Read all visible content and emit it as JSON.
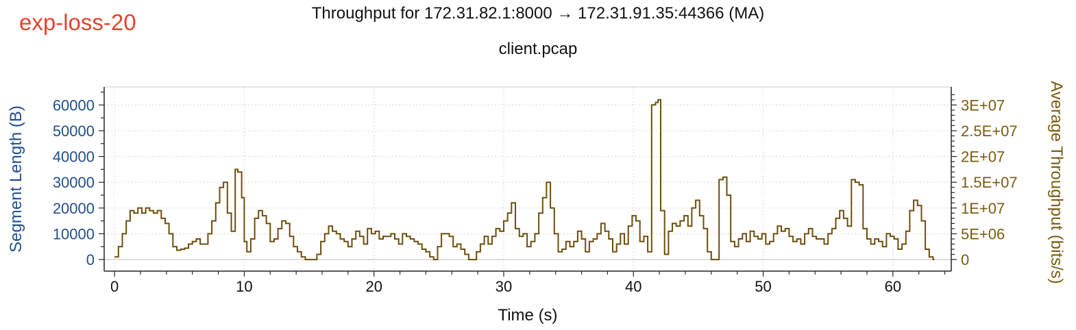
{
  "tag_label": "exp-loss-20",
  "chart_data": {
    "type": "line",
    "title": "Throughput for 172.31.82.1:8000 → 172.31.91.35:44366 (MA)",
    "subtitle": "client.pcap",
    "xlabel": "Time (s)",
    "ylabel_left": "Segment Length (B)",
    "ylabel_right": "Average Throughput (bits/s)",
    "xlim": [
      -0.8,
      64.5
    ],
    "ylim_left": [
      -4500,
      67000
    ],
    "ylim_right": [
      -2250000,
      33500000
    ],
    "x_ticks": [
      0,
      10,
      20,
      30,
      40,
      50,
      60
    ],
    "y_left_ticks": [
      0,
      10000,
      20000,
      30000,
      40000,
      50000,
      60000
    ],
    "y_right_ticks": [
      0,
      5000000,
      10000000,
      15000000,
      20000000,
      25000000,
      30000000
    ],
    "y_right_tick_labels": [
      "0",
      "5E+06",
      "1E+07",
      "1.5E+07",
      "2E+07",
      "2.5E+07",
      "3E+07"
    ],
    "grid": true,
    "colors": {
      "left_axis": "#1f4e8c",
      "right_axis": "#7a5a10",
      "series": "#6b4c0a"
    },
    "series": [
      {
        "axis": "right",
        "x": [
          0,
          0.3,
          0.6,
          0.9,
          1.2,
          1.5,
          1.8,
          2.1,
          2.4,
          2.7,
          3.0,
          3.3,
          3.6,
          3.9,
          4.2,
          4.5,
          4.8,
          5.1,
          5.4,
          5.7,
          6.0,
          6.3,
          6.6,
          6.9,
          7.2,
          7.5,
          7.8,
          8.1,
          8.4,
          8.7,
          9.0,
          9.3,
          9.5,
          9.8,
          10.0,
          10.2,
          10.5,
          10.8,
          11.1,
          11.4,
          11.7,
          12.0,
          12.3,
          12.6,
          12.9,
          13.2,
          13.5,
          13.8,
          14.1,
          14.4,
          14.7,
          15.0,
          15.3,
          15.6,
          15.9,
          16.2,
          16.5,
          16.8,
          17.1,
          17.4,
          17.7,
          18.0,
          18.3,
          18.6,
          18.9,
          19.2,
          19.5,
          19.8,
          20.1,
          20.4,
          20.7,
          21.0,
          21.3,
          21.6,
          21.9,
          22.2,
          22.5,
          22.8,
          23.1,
          23.4,
          23.7,
          24.0,
          24.3,
          24.6,
          24.9,
          25.2,
          25.5,
          25.8,
          26.1,
          26.4,
          26.7,
          27.0,
          27.3,
          27.6,
          27.9,
          28.2,
          28.5,
          28.8,
          29.1,
          29.4,
          29.7,
          30.0,
          30.3,
          30.6,
          30.9,
          31.2,
          31.5,
          31.8,
          32.1,
          32.4,
          32.7,
          33.0,
          33.3,
          33.6,
          33.9,
          34.2,
          34.5,
          34.8,
          35.1,
          35.4,
          35.7,
          36.0,
          36.3,
          36.6,
          36.9,
          37.2,
          37.5,
          37.8,
          38.1,
          38.4,
          38.7,
          39.0,
          39.3,
          39.6,
          39.9,
          40.2,
          40.5,
          40.8,
          41.1,
          41.4,
          41.7,
          41.9,
          42.1,
          42.4,
          42.7,
          43.0,
          43.3,
          43.6,
          43.9,
          44.2,
          44.5,
          44.8,
          45.1,
          45.4,
          45.7,
          46.0,
          46.3,
          46.6,
          46.9,
          47.2,
          47.5,
          47.8,
          48.1,
          48.4,
          48.7,
          49.0,
          49.3,
          49.6,
          49.9,
          50.2,
          50.5,
          50.8,
          51.1,
          51.4,
          51.7,
          52.0,
          52.3,
          52.6,
          52.9,
          53.2,
          53.5,
          53.8,
          54.1,
          54.4,
          54.7,
          55.0,
          55.3,
          55.6,
          55.9,
          56.2,
          56.5,
          56.8,
          57.1,
          57.4,
          57.7,
          58.0,
          58.3,
          58.6,
          58.9,
          59.2,
          59.5,
          59.8,
          60.1,
          60.4,
          60.7,
          61.0,
          61.3,
          61.6,
          61.9,
          62.2,
          62.5,
          62.8,
          63.1
        ],
        "values": [
          500000,
          2500000,
          5000000,
          7500000,
          9500000,
          9000000,
          10000000,
          9000000,
          10000000,
          9500000,
          9000000,
          9500000,
          8000000,
          7000000,
          5000000,
          2500000,
          1800000,
          2000000,
          2200000,
          3000000,
          3500000,
          4000000,
          3000000,
          3000000,
          5000000,
          7500000,
          11000000,
          14000000,
          15000000,
          9000000,
          5500000,
          17500000,
          17000000,
          12000000,
          3500000,
          1500000,
          4000000,
          8000000,
          9500000,
          8500000,
          7000000,
          3500000,
          4000000,
          6000000,
          7500000,
          7000000,
          4500000,
          2500000,
          1500000,
          500000,
          0,
          0,
          0,
          1000000,
          3500000,
          5000000,
          6500000,
          5500000,
          5000000,
          4000000,
          3500000,
          2500000,
          4000000,
          5500000,
          4500000,
          3000000,
          6000000,
          5000000,
          5500000,
          4000000,
          4500000,
          4500000,
          5000000,
          4000000,
          3000000,
          5000000,
          4500000,
          4000000,
          3500000,
          3000000,
          2000000,
          1500000,
          500000,
          0,
          2500000,
          5000000,
          5000000,
          4500000,
          2500000,
          3000000,
          2000000,
          1000000,
          0,
          0,
          1500000,
          3000000,
          4500000,
          3000000,
          4500000,
          6000000,
          5500000,
          7500000,
          9000000,
          11000000,
          6000000,
          4500000,
          5000000,
          2500000,
          3500000,
          5000000,
          9000000,
          12000000,
          15000000,
          10000000,
          5000000,
          1500000,
          2000000,
          3500000,
          2500000,
          3500000,
          5500000,
          4000000,
          1500000,
          3500000,
          4000000,
          5000000,
          7000000,
          5500000,
          4000000,
          1500000,
          3000000,
          5000000,
          3000000,
          6500000,
          8500000,
          7500000,
          3500000,
          4500000,
          1500000,
          30000000,
          30500000,
          31000000,
          9500000,
          1000000,
          5500000,
          7000000,
          6500000,
          7500000,
          8500000,
          6500000,
          10000000,
          11500000,
          8500000,
          6000000,
          1500000,
          0,
          0,
          15500000,
          16000000,
          12500000,
          3500000,
          2500000,
          4000000,
          5000000,
          3500000,
          5500000,
          4500000,
          4000000,
          5000000,
          3000000,
          3500000,
          5000000,
          6500000,
          5500000,
          6000000,
          4500000,
          3500000,
          4000000,
          3000000,
          5000000,
          6000000,
          4500000,
          4000000,
          4000000,
          3000000,
          5000000,
          6000000,
          8000000,
          9500000,
          8000000,
          6500000,
          15500000,
          15000000,
          14500000,
          6000000,
          4000000,
          3000000,
          4000000,
          3500000,
          2500000,
          5000000,
          4500000,
          4000000,
          2000000,
          3000000,
          5500000,
          9500000,
          11500000,
          10500000,
          7500000,
          2000000,
          500000,
          0
        ]
      }
    ]
  }
}
